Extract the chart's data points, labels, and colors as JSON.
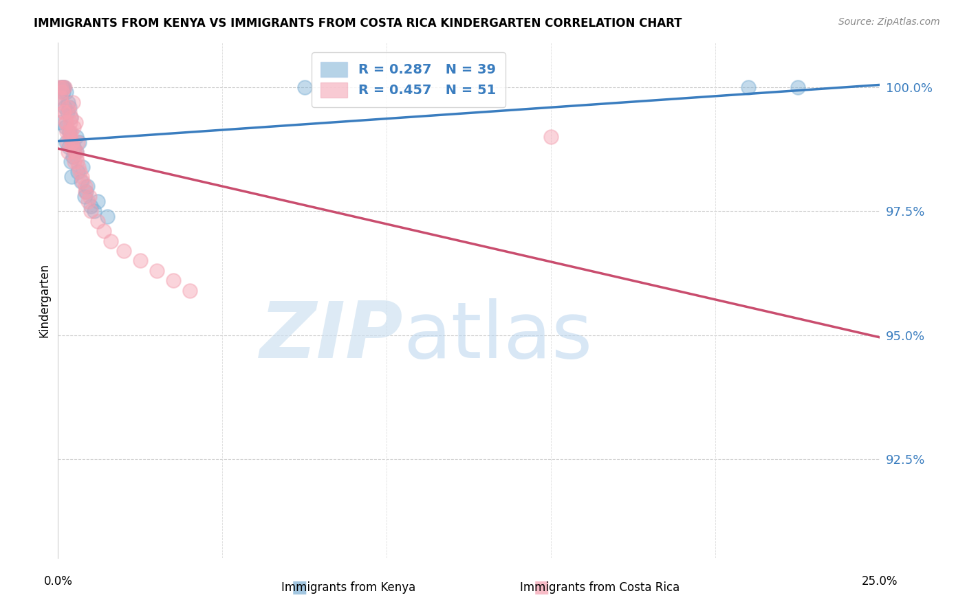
{
  "title": "IMMIGRANTS FROM KENYA VS IMMIGRANTS FROM COSTA RICA KINDERGARTEN CORRELATION CHART",
  "source": "Source: ZipAtlas.com",
  "ylabel": "Kindergarten",
  "ytick_labels": [
    "92.5%",
    "95.0%",
    "97.5%",
    "100.0%"
  ],
  "ytick_values": [
    92.5,
    95.0,
    97.5,
    100.0
  ],
  "xlim": [
    0.0,
    25.0
  ],
  "ylim": [
    90.5,
    100.9
  ],
  "kenya_color": "#7bafd4",
  "costa_rica_color": "#f4a0b0",
  "kenya_line_color": "#3a7dbf",
  "costa_rica_line_color": "#c94d6e",
  "legend_label_kenya": "Immigrants from Kenya",
  "legend_label_costa_rica": "Immigrants from Costa Rica",
  "watermark": "ZIPatlas",
  "kenya_scatter_x": [
    0.05,
    0.08,
    0.1,
    0.12,
    0.14,
    0.16,
    0.18,
    0.2,
    0.22,
    0.25,
    0.28,
    0.3,
    0.32,
    0.35,
    0.38,
    0.4,
    0.42,
    0.45,
    0.48,
    0.5,
    0.55,
    0.6,
    0.65,
    0.7,
    0.75,
    0.8,
    0.9,
    1.0,
    1.2,
    1.5,
    0.15,
    0.25,
    0.35,
    0.55,
    0.85,
    1.1,
    7.5,
    21.0,
    22.5
  ],
  "kenya_scatter_y": [
    99.3,
    99.8,
    100.0,
    100.0,
    100.0,
    99.9,
    100.0,
    99.6,
    99.2,
    98.9,
    99.5,
    99.7,
    98.8,
    99.1,
    98.5,
    99.4,
    98.2,
    98.6,
    98.8,
    98.7,
    99.0,
    98.3,
    98.9,
    98.1,
    98.4,
    97.8,
    98.0,
    97.6,
    97.7,
    97.4,
    100.0,
    99.9,
    99.6,
    98.7,
    97.9,
    97.5,
    100.0,
    100.0,
    100.0
  ],
  "costa_rica_scatter_x": [
    0.04,
    0.07,
    0.09,
    0.12,
    0.15,
    0.17,
    0.2,
    0.23,
    0.26,
    0.28,
    0.31,
    0.34,
    0.37,
    0.4,
    0.43,
    0.46,
    0.5,
    0.53,
    0.56,
    0.6,
    0.1,
    0.18,
    0.25,
    0.33,
    0.42,
    0.5,
    0.58,
    0.67,
    0.75,
    0.83,
    0.92,
    1.0,
    1.2,
    1.4,
    1.6,
    2.0,
    2.5,
    3.0,
    3.5,
    4.0,
    0.3,
    0.38,
    0.48,
    0.36,
    0.44,
    0.55,
    0.62,
    0.72,
    0.82,
    0.95,
    15.0
  ],
  "costa_rica_scatter_y": [
    100.0,
    99.8,
    100.0,
    99.9,
    100.0,
    99.5,
    100.0,
    99.3,
    99.1,
    98.9,
    98.7,
    99.5,
    99.3,
    99.1,
    98.9,
    99.7,
    98.5,
    99.3,
    98.7,
    98.9,
    99.7,
    99.5,
    99.3,
    99.1,
    98.9,
    98.7,
    98.5,
    98.3,
    98.1,
    97.9,
    97.7,
    97.5,
    97.3,
    97.1,
    96.9,
    96.7,
    96.5,
    96.3,
    96.1,
    95.9,
    99.6,
    99.4,
    99.2,
    99.0,
    98.8,
    98.6,
    98.4,
    98.2,
    98.0,
    97.8,
    99.0
  ]
}
